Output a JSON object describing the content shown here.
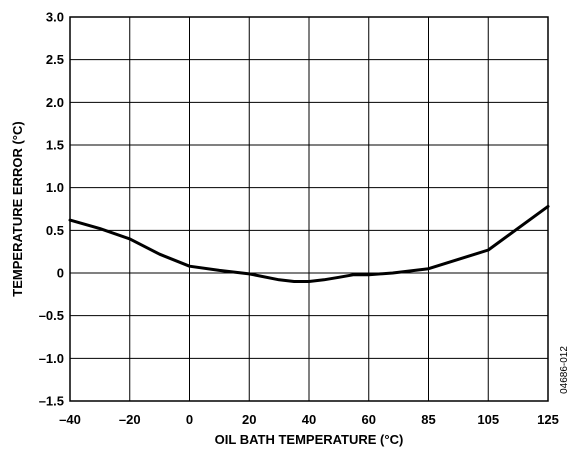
{
  "chart_data": {
    "type": "line",
    "xlabel": "OIL BATH TEMPERATURE (°C)",
    "ylabel": "TEMPERATURE ERROR (°C)",
    "x_tick_labels": [
      "–40",
      "–20",
      "0",
      "20",
      "40",
      "60",
      "85",
      "105",
      "125"
    ],
    "y_tick_labels": [
      "3.0",
      "2.5",
      "2.0",
      "1.5",
      "1.0",
      "0.5",
      "0",
      "–0.5",
      "–1.0",
      "–1.5"
    ],
    "ylim": [
      -1.5,
      3.0
    ],
    "grid": true,
    "figure_id": "04686-012",
    "series": [
      {
        "x": [
          -40,
          -30,
          -20,
          -10,
          0,
          10,
          20,
          30,
          35,
          40,
          45,
          50,
          55,
          60,
          70,
          85,
          105,
          125
        ],
        "y": [
          0.62,
          0.52,
          0.4,
          0.22,
          0.08,
          0.03,
          -0.01,
          -0.08,
          -0.1,
          -0.1,
          -0.08,
          -0.05,
          -0.02,
          -0.02,
          0.0,
          0.05,
          0.27,
          0.78
        ]
      }
    ]
  }
}
